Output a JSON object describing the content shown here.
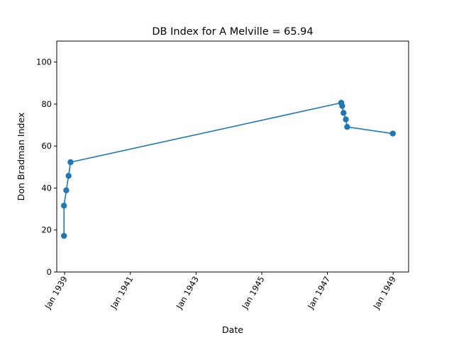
{
  "chart_data": {
    "type": "line",
    "title": "DB Index for A Melville = 65.94",
    "xlabel": "Date",
    "ylabel": "Don Bradman Index",
    "ylim": [
      0,
      110
    ],
    "xlim": [
      1938.76,
      1949.47
    ],
    "grid": false,
    "yticks": [
      0,
      20,
      40,
      60,
      80,
      100
    ],
    "xticks": [
      {
        "value": 1939.0,
        "label": "Jan 1939"
      },
      {
        "value": 1941.0,
        "label": "Jan 1941"
      },
      {
        "value": 1943.0,
        "label": "Jan 1943"
      },
      {
        "value": 1945.0,
        "label": "Jan 1945"
      },
      {
        "value": 1947.0,
        "label": "Jan 1947"
      },
      {
        "value": 1949.0,
        "label": "Jan 1949"
      }
    ],
    "series": [
      {
        "name": "A Melville",
        "color": "#1f77b4",
        "marker": "circle",
        "x": [
          1938.98,
          1938.98,
          1939.05,
          1939.12,
          1939.18,
          1947.42,
          1947.45,
          1947.49,
          1947.56,
          1947.6,
          1948.99
        ],
        "y": [
          17.2,
          31.6,
          38.9,
          45.8,
          52.3,
          80.6,
          79.1,
          75.8,
          72.7,
          69.1,
          65.94
        ]
      }
    ]
  }
}
